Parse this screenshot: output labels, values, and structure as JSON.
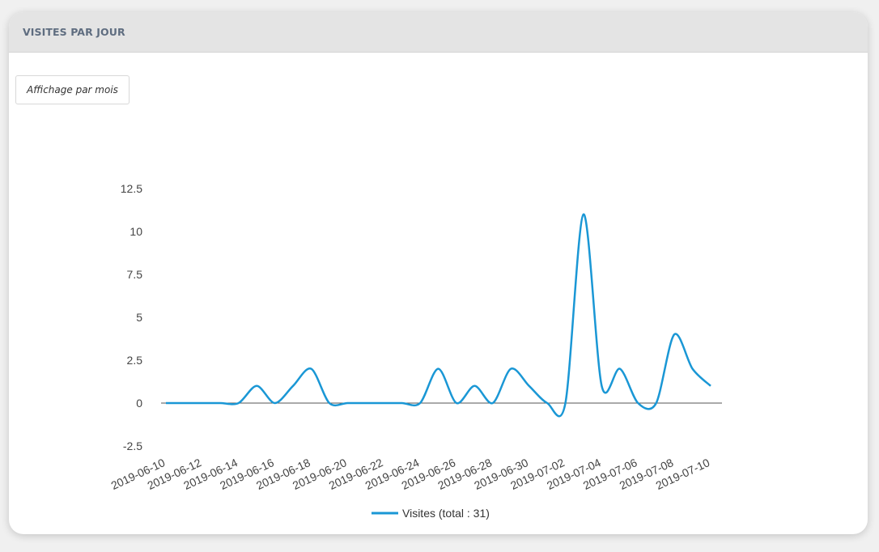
{
  "panel": {
    "title": "VISITES PAR JOUR",
    "toggle_label": "Affichage par mois"
  },
  "colors": {
    "line": "#1a97d5",
    "header_bg": "#e4e4e4",
    "title": "#5f6d80"
  },
  "chart_data": {
    "type": "line",
    "x": [
      "2019-06-10",
      "2019-06-11",
      "2019-06-12",
      "2019-06-13",
      "2019-06-14",
      "2019-06-15",
      "2019-06-16",
      "2019-06-17",
      "2019-06-18",
      "2019-06-19",
      "2019-06-20",
      "2019-06-21",
      "2019-06-22",
      "2019-06-23",
      "2019-06-24",
      "2019-06-25",
      "2019-06-26",
      "2019-06-27",
      "2019-06-28",
      "2019-06-29",
      "2019-06-30",
      "2019-07-01",
      "2019-07-02",
      "2019-07-03",
      "2019-07-04",
      "2019-07-05",
      "2019-07-06",
      "2019-07-07",
      "2019-07-08",
      "2019-07-09",
      "2019-07-10"
    ],
    "series": [
      {
        "name": "Visites (total : 31)",
        "values": [
          0,
          0,
          0,
          0,
          0,
          1,
          0,
          1,
          2,
          0,
          0,
          0,
          0,
          0,
          0,
          2,
          0,
          1,
          0,
          2,
          1,
          0,
          0,
          11,
          1,
          2,
          0,
          0,
          4,
          2,
          1
        ]
      }
    ],
    "x_tick_labels": [
      "2019-06-10",
      "2019-06-12",
      "2019-06-14",
      "2019-06-16",
      "2019-06-18",
      "2019-06-20",
      "2019-06-22",
      "2019-06-24",
      "2019-06-26",
      "2019-06-28",
      "2019-06-30",
      "2019-07-02",
      "2019-07-04",
      "2019-07-06",
      "2019-07-08",
      "2019-07-10"
    ],
    "y_ticks": [
      "12.5",
      "10",
      "7.5",
      "5",
      "2.5",
      "0",
      "-2.5"
    ],
    "ylim": [
      -2.5,
      12.5
    ],
    "title": "",
    "xlabel": "",
    "ylabel": "",
    "legend_position": "bottom",
    "grid": false
  }
}
